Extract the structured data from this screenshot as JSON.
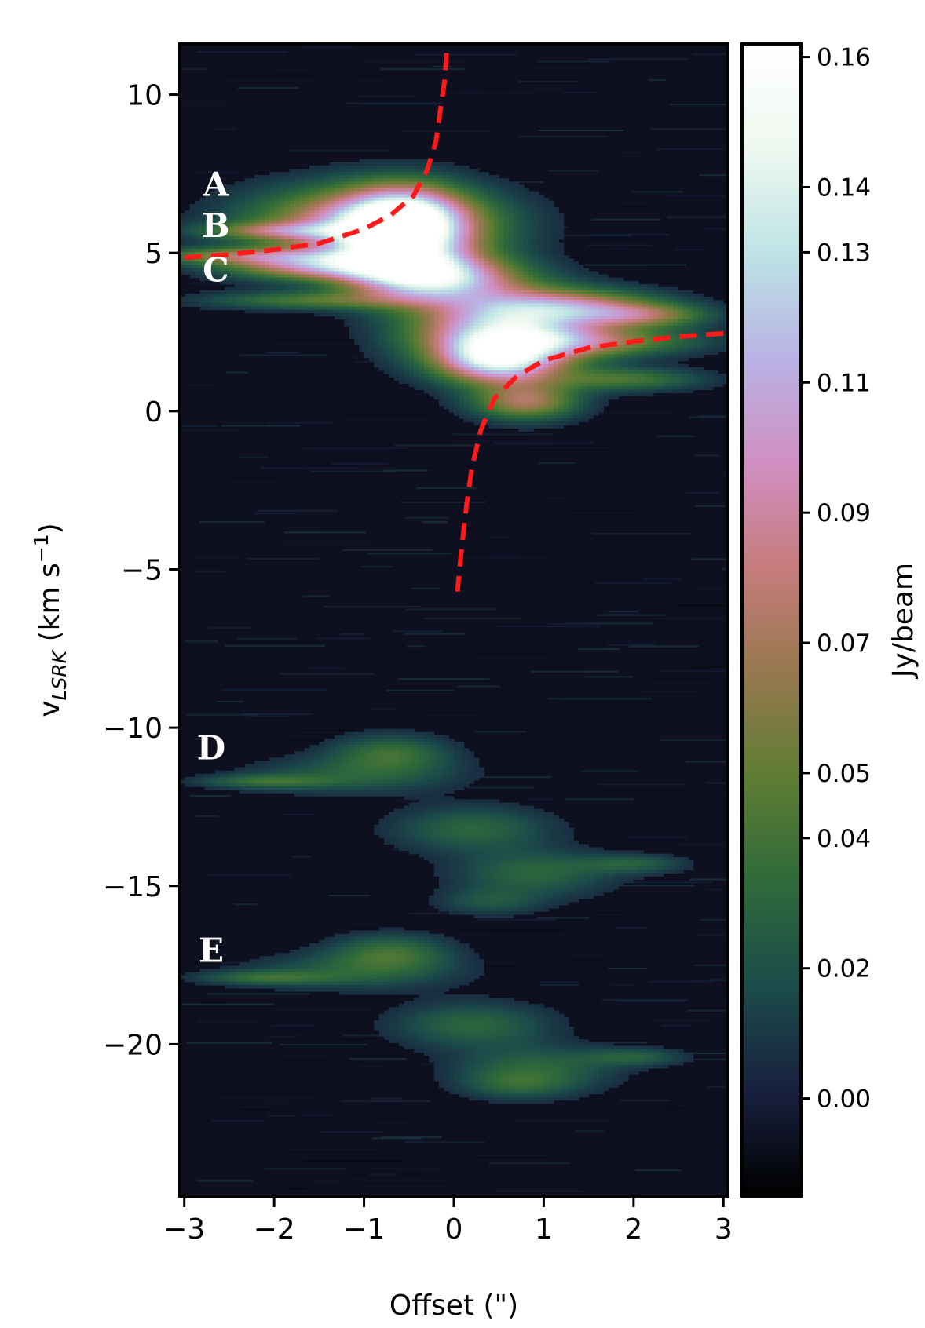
{
  "chart_data": {
    "type": "heatmap",
    "title": "",
    "xlabel": "Offset (\")",
    "ylabel_main": "v",
    "ylabel_sub": "LSRK",
    "ylabel_units_pre": " (km s",
    "ylabel_units_sup": "−1",
    "ylabel_units_post": ")",
    "xlim": [
      -3.05,
      3.05
    ],
    "ylim": [
      -24.8,
      11.6
    ],
    "x_ticks": [
      -3,
      -2,
      -1,
      0,
      1,
      2,
      3
    ],
    "x_tick_labels": [
      "−3",
      "−2",
      "−1",
      "0",
      "1",
      "2",
      "3"
    ],
    "y_ticks": [
      10,
      5,
      0,
      -5,
      -10,
      -15,
      -20
    ],
    "y_tick_labels": [
      "10",
      "5",
      "0",
      "−5",
      "−10",
      "−15",
      "−20"
    ],
    "colorbar": {
      "label": "Jy/beam",
      "range": [
        -0.015,
        0.162
      ],
      "ticks": [
        0.16,
        0.14,
        0.13,
        0.11,
        0.09,
        0.07,
        0.05,
        0.04,
        0.02,
        0.0
      ],
      "tick_labels": [
        "0.16",
        "0.14",
        "0.13",
        "0.11",
        "0.09",
        "0.07",
        "0.05",
        "0.04",
        "0.02",
        "0.00"
      ],
      "colors": [
        "#000000",
        "#18203e",
        "#1c4c4a",
        "#2f6a3a",
        "#5e7d33",
        "#97784e",
        "#c67c7c",
        "#d08fc2",
        "#b9b2e4",
        "#bde3e5",
        "#eef8f0",
        "#ffffff"
      ]
    },
    "annotations": [
      {
        "text": "A",
        "x": -2.65,
        "y": 6.8
      },
      {
        "text": "B",
        "x": -2.65,
        "y": 5.5
      },
      {
        "text": "C",
        "x": -2.65,
        "y": 4.1
      },
      {
        "text": "D",
        "x": -2.7,
        "y": -11.0
      },
      {
        "text": "E",
        "x": -2.7,
        "y": -17.4
      }
    ],
    "emission_blobs": [
      {
        "x": -0.9,
        "y": 5.9,
        "sx": 0.9,
        "sy": 0.8,
        "a": 0.1
      },
      {
        "x": -0.6,
        "y": 5.3,
        "sx": 0.5,
        "sy": 0.9,
        "a": 0.12
      },
      {
        "x": -0.55,
        "y": 6.3,
        "sx": 0.4,
        "sy": 0.6,
        "a": 0.06
      },
      {
        "x": -1.9,
        "y": 5.7,
        "sx": 0.6,
        "sy": 0.18,
        "a": 0.05
      },
      {
        "x": -2.4,
        "y": 4.9,
        "sx": 0.7,
        "sy": 0.18,
        "a": 0.05
      },
      {
        "x": -1.5,
        "y": 4.6,
        "sx": 0.7,
        "sy": 0.3,
        "a": 0.08
      },
      {
        "x": -0.2,
        "y": 4.2,
        "sx": 0.6,
        "sy": 0.5,
        "a": 0.11
      },
      {
        "x": -1.6,
        "y": 3.5,
        "sx": 0.8,
        "sy": 0.2,
        "a": 0.04
      },
      {
        "x": 0.6,
        "y": 2.6,
        "sx": 0.7,
        "sy": 0.8,
        "a": 0.13
      },
      {
        "x": 0.5,
        "y": 1.6,
        "sx": 0.45,
        "sy": 0.5,
        "a": 0.11
      },
      {
        "x": 1.4,
        "y": 3.3,
        "sx": 0.7,
        "sy": 0.35,
        "a": 0.06
      },
      {
        "x": 2.1,
        "y": 3.0,
        "sx": 0.5,
        "sy": 0.25,
        "a": 0.05
      },
      {
        "x": 1.6,
        "y": 2.2,
        "sx": 0.8,
        "sy": 0.3,
        "a": 0.05
      },
      {
        "x": 1.9,
        "y": 1.0,
        "sx": 0.6,
        "sy": 0.25,
        "a": 0.04
      },
      {
        "x": 0.8,
        "y": 0.3,
        "sx": 0.4,
        "sy": 0.4,
        "a": 0.07
      },
      {
        "x": -0.7,
        "y": -10.8,
        "sx": 0.45,
        "sy": 0.4,
        "a": 0.035
      },
      {
        "x": -2.1,
        "y": -11.7,
        "sx": 0.5,
        "sy": 0.15,
        "a": 0.03
      },
      {
        "x": -1.1,
        "y": -11.5,
        "sx": 0.8,
        "sy": 0.4,
        "a": 0.025
      },
      {
        "x": 0.2,
        "y": -13.2,
        "sx": 0.6,
        "sy": 0.5,
        "a": 0.03
      },
      {
        "x": 0.9,
        "y": -14.6,
        "sx": 0.6,
        "sy": 0.5,
        "a": 0.03
      },
      {
        "x": 2.0,
        "y": -14.3,
        "sx": 0.4,
        "sy": 0.2,
        "a": 0.025
      },
      {
        "x": 0.4,
        "y": -15.5,
        "sx": 0.4,
        "sy": 0.3,
        "a": 0.02
      },
      {
        "x": -0.7,
        "y": -17.1,
        "sx": 0.45,
        "sy": 0.4,
        "a": 0.035
      },
      {
        "x": -2.1,
        "y": -17.9,
        "sx": 0.5,
        "sy": 0.15,
        "a": 0.03
      },
      {
        "x": -1.1,
        "y": -17.7,
        "sx": 0.8,
        "sy": 0.4,
        "a": 0.025
      },
      {
        "x": 0.2,
        "y": -19.4,
        "sx": 0.6,
        "sy": 0.5,
        "a": 0.03
      },
      {
        "x": 0.9,
        "y": -20.8,
        "sx": 0.6,
        "sy": 0.5,
        "a": 0.03
      },
      {
        "x": 2.0,
        "y": -20.4,
        "sx": 0.4,
        "sy": 0.2,
        "a": 0.025
      },
      {
        "x": 0.7,
        "y": -21.3,
        "sx": 0.4,
        "sy": 0.3,
        "a": 0.02
      }
    ],
    "keplerian_curve": {
      "color": "#ff1a1a",
      "style": "dashed",
      "left_branch": [
        [
          -3.0,
          4.85
        ],
        [
          -2.5,
          4.95
        ],
        [
          -2.0,
          5.1
        ],
        [
          -1.5,
          5.3
        ],
        [
          -1.0,
          5.75
        ],
        [
          -0.7,
          6.2
        ],
        [
          -0.45,
          6.8
        ],
        [
          -0.3,
          7.6
        ],
        [
          -0.2,
          8.5
        ],
        [
          -0.15,
          9.5
        ],
        [
          -0.1,
          10.5
        ],
        [
          -0.08,
          11.4
        ]
      ],
      "right_branch": [
        [
          3.0,
          2.45
        ],
        [
          2.5,
          2.35
        ],
        [
          2.0,
          2.2
        ],
        [
          1.5,
          2.0
        ],
        [
          1.0,
          1.6
        ],
        [
          0.7,
          1.1
        ],
        [
          0.45,
          0.4
        ],
        [
          0.3,
          -0.6
        ],
        [
          0.2,
          -1.8
        ],
        [
          0.14,
          -3.0
        ],
        [
          0.08,
          -4.5
        ],
        [
          0.04,
          -5.7
        ]
      ]
    }
  }
}
